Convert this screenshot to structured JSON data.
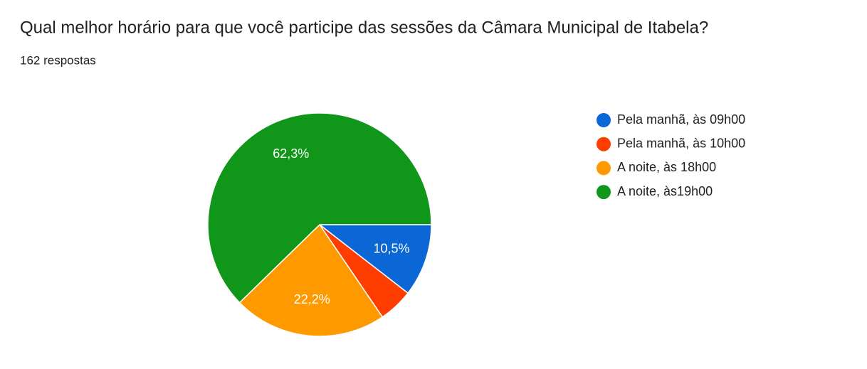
{
  "chart_data": {
    "type": "pie",
    "title": "Qual melhor horário para que você participe das sessões da Câmara Municipal de Itabela?",
    "subtitle": "162 respostas",
    "categories": [
      "Pela manhã, às 09h00",
      "Pela manhã, às 10h00",
      "A noite, às 18h00",
      "A noite, às19h00"
    ],
    "values": [
      10.5,
      5.0,
      22.2,
      62.3
    ],
    "value_labels": [
      "10,5%",
      null,
      "22,2%",
      "62,3%"
    ],
    "colors": [
      "#0b66d6",
      "#ff3d00",
      "#ff9900",
      "#109618"
    ],
    "legend": "right"
  }
}
